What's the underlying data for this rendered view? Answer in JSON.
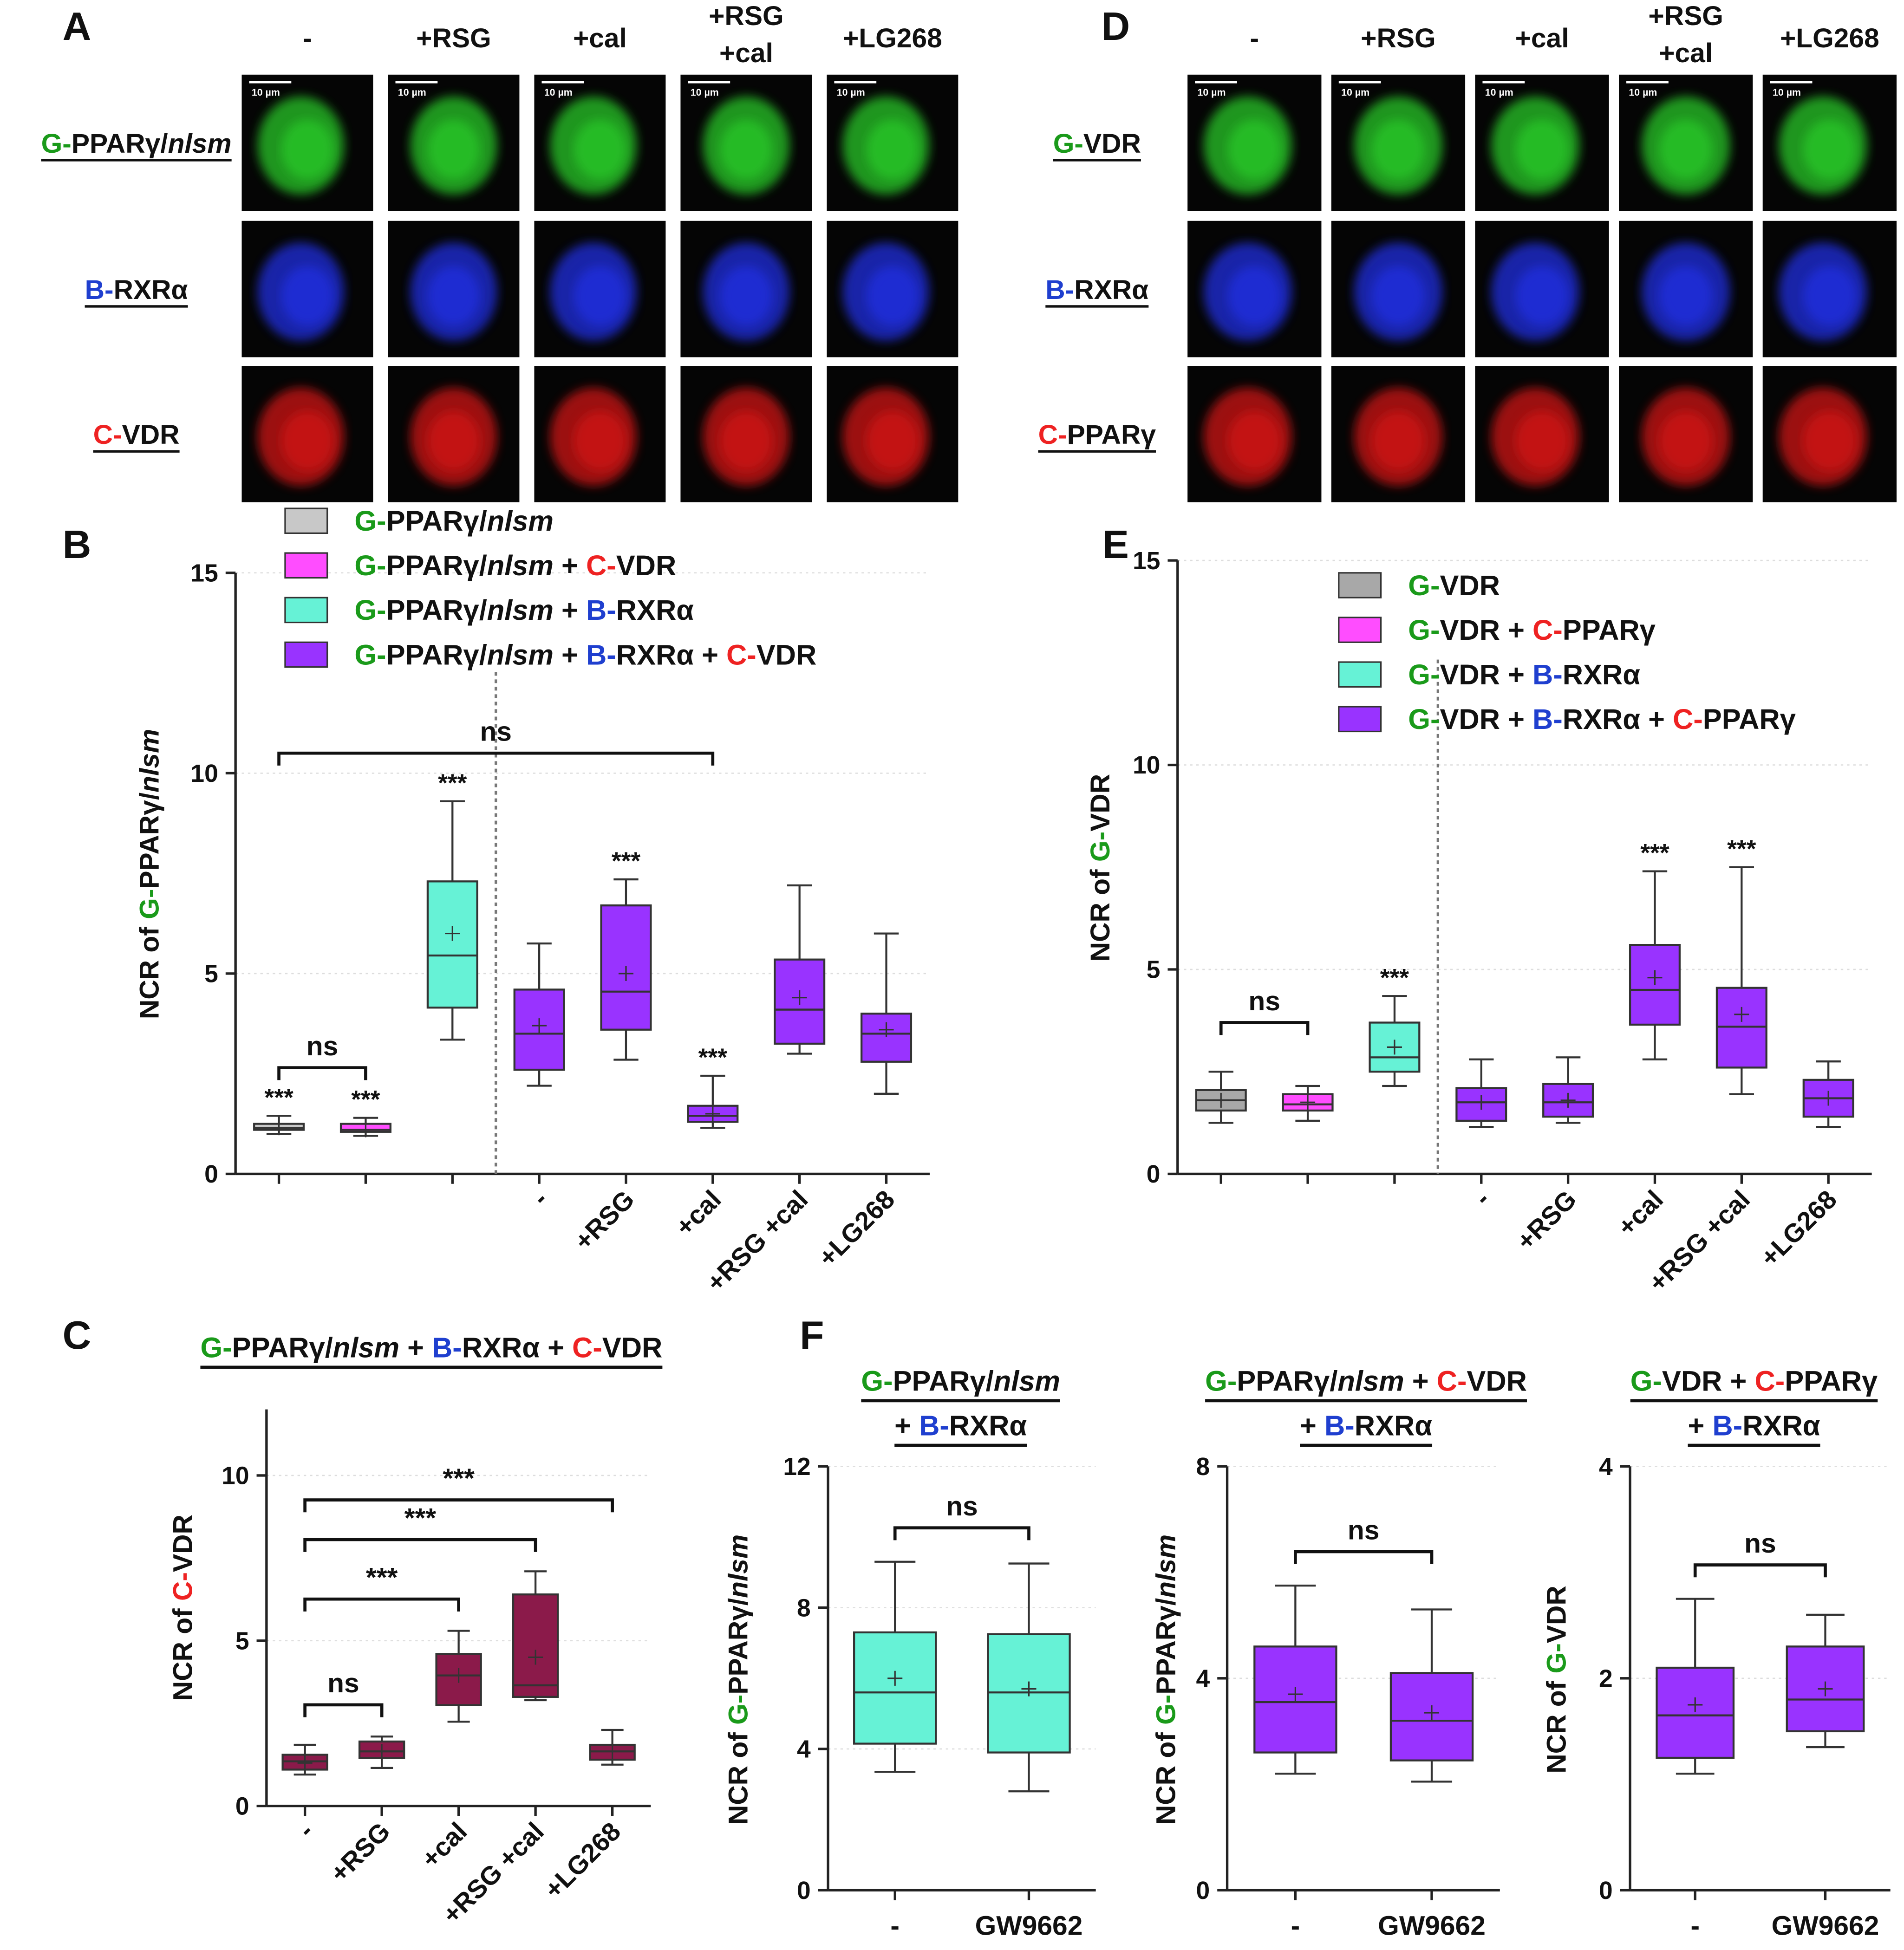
{
  "micrographs": [
    {
      "panel": "A",
      "columns": [
        "-",
        "+RSG",
        "+cal",
        [
          "+RSG",
          "+cal"
        ],
        "+LG268"
      ],
      "rows": [
        {
          "label": "G-PPARγ/nlsm",
          "color": "#2bd42b"
        },
        {
          "label": "B-RXRα",
          "color": "#2233ee"
        },
        {
          "label": "C-VDR",
          "color": "#dd1515"
        }
      ],
      "scale_bar": "10 µm"
    },
    {
      "panel": "D",
      "columns": [
        "-",
        "+RSG",
        "+cal",
        [
          "+RSG",
          "+cal"
        ],
        "+LG268"
      ],
      "rows": [
        {
          "label": "G-VDR",
          "color": "#2bd42b"
        },
        {
          "label": "B-RXRα",
          "color": "#2233ee"
        },
        {
          "label": "C-PPARγ",
          "color": "#dd1515"
        }
      ],
      "scale_bar": "10 µm"
    }
  ],
  "chart_data": [
    {
      "type": "box",
      "panel": "B",
      "ylabel": "NCR of G-PPARγ/nlsm",
      "ylim": [
        0,
        15
      ],
      "yticks": [
        0,
        5,
        10,
        15
      ],
      "grid": true,
      "legend": "top-left",
      "divider_after": 2,
      "categories": [
        null,
        null,
        null,
        "-",
        "+RSG",
        "+cal",
        "+RSG +cal",
        "+LG268"
      ],
      "series": [
        {
          "name": "G-PPARγ/nlsm",
          "color": "#c8c8c8",
          "values": [
            {
              "min": 1.0,
              "q1": 1.1,
              "median": 1.15,
              "q3": 1.25,
              "max": 1.45,
              "mean": 1.15,
              "sig": "***"
            },
            null,
            null,
            null,
            null,
            null,
            null,
            null
          ]
        },
        {
          "name": "G-PPARγ/nlsm + C-VDR",
          "color": "#ff4dff",
          "values": [
            null,
            {
              "min": 0.95,
              "q1": 1.05,
              "median": 1.1,
              "q3": 1.25,
              "max": 1.4,
              "mean": 1.1,
              "sig": "***"
            },
            null,
            null,
            null,
            null,
            null,
            null
          ]
        },
        {
          "name": "G-PPARγ/nlsm + B-RXRα",
          "color": "#66f2d6",
          "values": [
            null,
            null,
            {
              "min": 3.35,
              "q1": 4.15,
              "median": 5.45,
              "q3": 7.3,
              "max": 9.3,
              "mean": 6.0,
              "sig": "***"
            },
            null,
            null,
            null,
            null,
            null
          ]
        },
        {
          "name": "G-PPARγ/nlsm + B-RXRα + C-VDR",
          "color": "#9933ff",
          "values": [
            null,
            null,
            null,
            {
              "min": 2.2,
              "q1": 2.6,
              "median": 3.5,
              "q3": 4.6,
              "max": 5.75,
              "mean": 3.7
            },
            {
              "min": 2.85,
              "q1": 3.6,
              "median": 4.55,
              "q3": 6.7,
              "max": 7.35,
              "mean": 5.0,
              "sig": "***"
            },
            {
              "min": 1.15,
              "q1": 1.3,
              "median": 1.45,
              "q3": 1.7,
              "max": 2.45,
              "mean": 1.5,
              "sig": "***"
            },
            {
              "min": 3.0,
              "q1": 3.25,
              "median": 4.1,
              "q3": 5.35,
              "max": 7.2,
              "mean": 4.4
            },
            {
              "min": 2.0,
              "q1": 2.8,
              "median": 3.5,
              "q3": 4.0,
              "max": 6.0,
              "mean": 3.6
            }
          ]
        }
      ],
      "brackets": [
        {
          "from": 0,
          "to": 1,
          "label": "ns"
        },
        {
          "from": 0,
          "to": 5,
          "label": "ns"
        }
      ]
    },
    {
      "type": "box",
      "panel": "E",
      "ylabel": "NCR of G-VDR",
      "ylim": [
        0,
        15
      ],
      "yticks": [
        0,
        5,
        10,
        15
      ],
      "grid": true,
      "legend": "top-right",
      "divider_after": 2,
      "categories": [
        null,
        null,
        null,
        "-",
        "+RSG",
        "+cal",
        "+RSG +cal",
        "+LG268"
      ],
      "series": [
        {
          "name": "G-VDR",
          "color": "#a8a8a8",
          "values": [
            {
              "min": 1.25,
              "q1": 1.55,
              "median": 1.8,
              "q3": 2.05,
              "max": 2.5,
              "mean": 1.8
            },
            null,
            null,
            null,
            null,
            null,
            null,
            null
          ]
        },
        {
          "name": "G-VDR + C-PPARγ",
          "color": "#ff4dff",
          "values": [
            null,
            {
              "min": 1.3,
              "q1": 1.55,
              "median": 1.7,
              "q3": 1.95,
              "max": 2.15,
              "mean": 1.75
            },
            null,
            null,
            null,
            null,
            null,
            null
          ]
        },
        {
          "name": "G-VDR + B-RXRα",
          "color": "#66f2d6",
          "values": [
            null,
            null,
            {
              "min": 2.15,
              "q1": 2.5,
              "median": 2.85,
              "q3": 3.7,
              "max": 4.35,
              "mean": 3.1,
              "sig": "***"
            },
            null,
            null,
            null,
            null,
            null
          ]
        },
        {
          "name": "G-VDR + B-RXRα + C-PPARγ",
          "color": "#9933ff",
          "values": [
            null,
            null,
            null,
            {
              "min": 1.15,
              "q1": 1.3,
              "median": 1.75,
              "q3": 2.1,
              "max": 2.8,
              "mean": 1.75
            },
            {
              "min": 1.25,
              "q1": 1.4,
              "median": 1.75,
              "q3": 2.2,
              "max": 2.85,
              "mean": 1.8
            },
            {
              "min": 2.8,
              "q1": 3.65,
              "median": 4.5,
              "q3": 5.6,
              "max": 7.4,
              "mean": 4.8,
              "sig": "***"
            },
            {
              "min": 1.95,
              "q1": 2.6,
              "median": 3.6,
              "q3": 4.55,
              "max": 7.5,
              "mean": 3.9,
              "sig": "***"
            },
            {
              "min": 1.15,
              "q1": 1.4,
              "median": 1.85,
              "q3": 2.3,
              "max": 2.75,
              "mean": 1.85
            }
          ]
        }
      ],
      "brackets": [
        {
          "from": 0,
          "to": 1,
          "label": "ns"
        }
      ]
    },
    {
      "type": "box",
      "panel": "C",
      "title": [
        "G-PPARγ/nlsm + B-RXRα + C-VDR"
      ],
      "ylabel": "NCR of C-VDR",
      "ylim": [
        0,
        12
      ],
      "yticks": [
        0,
        5,
        10
      ],
      "grid": true,
      "color": "#8b1a4a",
      "categories": [
        "-",
        "+RSG",
        "+cal",
        "+RSG +cal",
        "+LG268"
      ],
      "values": [
        {
          "min": 0.95,
          "q1": 1.1,
          "median": 1.35,
          "q3": 1.55,
          "max": 1.85,
          "mean": 1.3
        },
        {
          "min": 1.15,
          "q1": 1.45,
          "median": 1.65,
          "q3": 1.95,
          "max": 2.1,
          "mean": 1.65
        },
        {
          "min": 2.55,
          "q1": 3.05,
          "median": 3.95,
          "q3": 4.6,
          "max": 5.3,
          "mean": 3.95
        },
        {
          "min": 3.2,
          "q1": 3.3,
          "median": 3.65,
          "q3": 6.4,
          "max": 7.1,
          "mean": 4.5
        },
        {
          "min": 1.25,
          "q1": 1.4,
          "median": 1.65,
          "q3": 1.85,
          "max": 2.3,
          "mean": 1.65
        }
      ],
      "brackets": [
        {
          "from": 0,
          "to": 1,
          "label": "ns"
        },
        {
          "from": 0,
          "to": 2,
          "label": "***"
        },
        {
          "from": 0,
          "to": 3,
          "label": "***"
        },
        {
          "from": 0,
          "to": 4,
          "label": "***"
        }
      ]
    },
    {
      "type": "box",
      "panel": "F",
      "title": [
        "G-PPARγ/nlsm",
        "+ B-RXRα"
      ],
      "ylabel": "NCR of G-PPARγ/nlsm",
      "ylim": [
        0,
        12
      ],
      "yticks": [
        0,
        4,
        8,
        12
      ],
      "grid": true,
      "color": "#66f2d6",
      "categories": [
        "-",
        "GW9662"
      ],
      "values": [
        {
          "min": 3.35,
          "q1": 4.15,
          "median": 5.6,
          "q3": 7.3,
          "max": 9.3,
          "mean": 6.0
        },
        {
          "min": 2.8,
          "q1": 3.9,
          "median": 5.6,
          "q3": 7.25,
          "max": 9.25,
          "mean": 5.7
        }
      ],
      "brackets": [
        {
          "from": 0,
          "to": 1,
          "label": "ns"
        }
      ]
    },
    {
      "type": "box",
      "title": [
        "G-PPARγ/nlsm + C-VDR",
        "+ B-RXRα"
      ],
      "ylabel": "NCR of G-PPARγ/nlsm",
      "ylim": [
        0,
        8
      ],
      "yticks": [
        0,
        4,
        8
      ],
      "grid": true,
      "color": "#9933ff",
      "categories": [
        "-",
        "GW9662"
      ],
      "values": [
        {
          "min": 2.2,
          "q1": 2.6,
          "median": 3.55,
          "q3": 4.6,
          "max": 5.75,
          "mean": 3.7
        },
        {
          "min": 2.05,
          "q1": 2.45,
          "median": 3.2,
          "q3": 4.1,
          "max": 5.3,
          "mean": 3.35
        }
      ],
      "brackets": [
        {
          "from": 0,
          "to": 1,
          "label": "ns"
        }
      ]
    },
    {
      "type": "box",
      "title": [
        "G-VDR + C-PPARγ",
        "+ B-RXRα"
      ],
      "ylabel": "NCR of G-VDR",
      "ylim": [
        0,
        4
      ],
      "yticks": [
        0,
        2,
        4
      ],
      "grid": true,
      "color": "#9933ff",
      "categories": [
        "-",
        "GW9662"
      ],
      "values": [
        {
          "min": 1.1,
          "q1": 1.25,
          "median": 1.65,
          "q3": 2.1,
          "max": 2.75,
          "mean": 1.75
        },
        {
          "min": 1.35,
          "q1": 1.5,
          "median": 1.8,
          "q3": 2.3,
          "max": 2.6,
          "mean": 1.9
        }
      ],
      "brackets": [
        {
          "from": 0,
          "to": 1,
          "label": "ns"
        }
      ]
    }
  ]
}
